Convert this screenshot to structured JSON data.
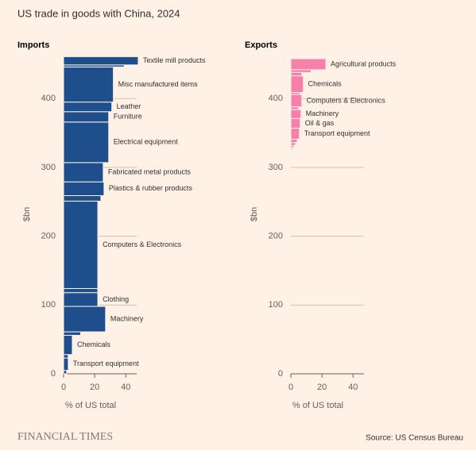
{
  "title": "US trade in goods with China, 2024",
  "brand": "FINANCIAL TIMES",
  "source": "Source: US Census Bureau",
  "chart_data": [
    {
      "type": "mekko",
      "title": "Imports",
      "color": "#1f4e8c",
      "stack": "bottom",
      "ylabel": "$bn",
      "xlabel": "% of US total",
      "ylim": [
        0,
        458
      ],
      "yticks": [
        0,
        100,
        200,
        300,
        400
      ],
      "xlim": [
        0,
        47
      ],
      "xticks": [
        0,
        20,
        40
      ],
      "categories": [
        null,
        "Transport equipment",
        null,
        "Chemicals",
        null,
        "Machinery",
        "Clothing",
        null,
        "Computers & Electronics",
        null,
        "Plastics & rubber products",
        "Fabricated metal products",
        "Electrical equipment",
        "Furniture",
        "Leather",
        "Misc manufactured items",
        null,
        "Textile mill products"
      ],
      "values": [
        5,
        18,
        5,
        28,
        5,
        37,
        20,
        6,
        127,
        8,
        20,
        28,
        59,
        15,
        14,
        51,
        3,
        12
      ],
      "shares": [
        2,
        3,
        3,
        5.6,
        11,
        27,
        22,
        22,
        22,
        24,
        26,
        25.5,
        29,
        29,
        31,
        32,
        39,
        48
      ]
    },
    {
      "type": "mekko",
      "title": "Exports",
      "color": "#f77fa8",
      "stack": "top",
      "ylabel": "$bn",
      "xlabel": "% of US total",
      "ylim": [
        0,
        458
      ],
      "yticks": [
        0,
        100,
        200,
        300,
        400
      ],
      "xlim": [
        0,
        47
      ],
      "xticks": [
        0,
        20,
        40
      ],
      "categories": [
        "Agricultural products",
        null,
        null,
        "Chemicals",
        null,
        "Computers & Electronics",
        null,
        "Machinery",
        "Oil & gas",
        "Transport equipment",
        null,
        null,
        null,
        null
      ],
      "values": [
        16,
        4,
        5,
        24,
        3,
        18,
        4,
        13,
        14,
        16,
        5,
        4,
        3,
        3
      ],
      "shares": [
        22.5,
        13,
        7,
        8,
        6,
        7,
        5,
        6.5,
        6,
        5.5,
        4,
        3,
        2,
        1
      ]
    }
  ]
}
